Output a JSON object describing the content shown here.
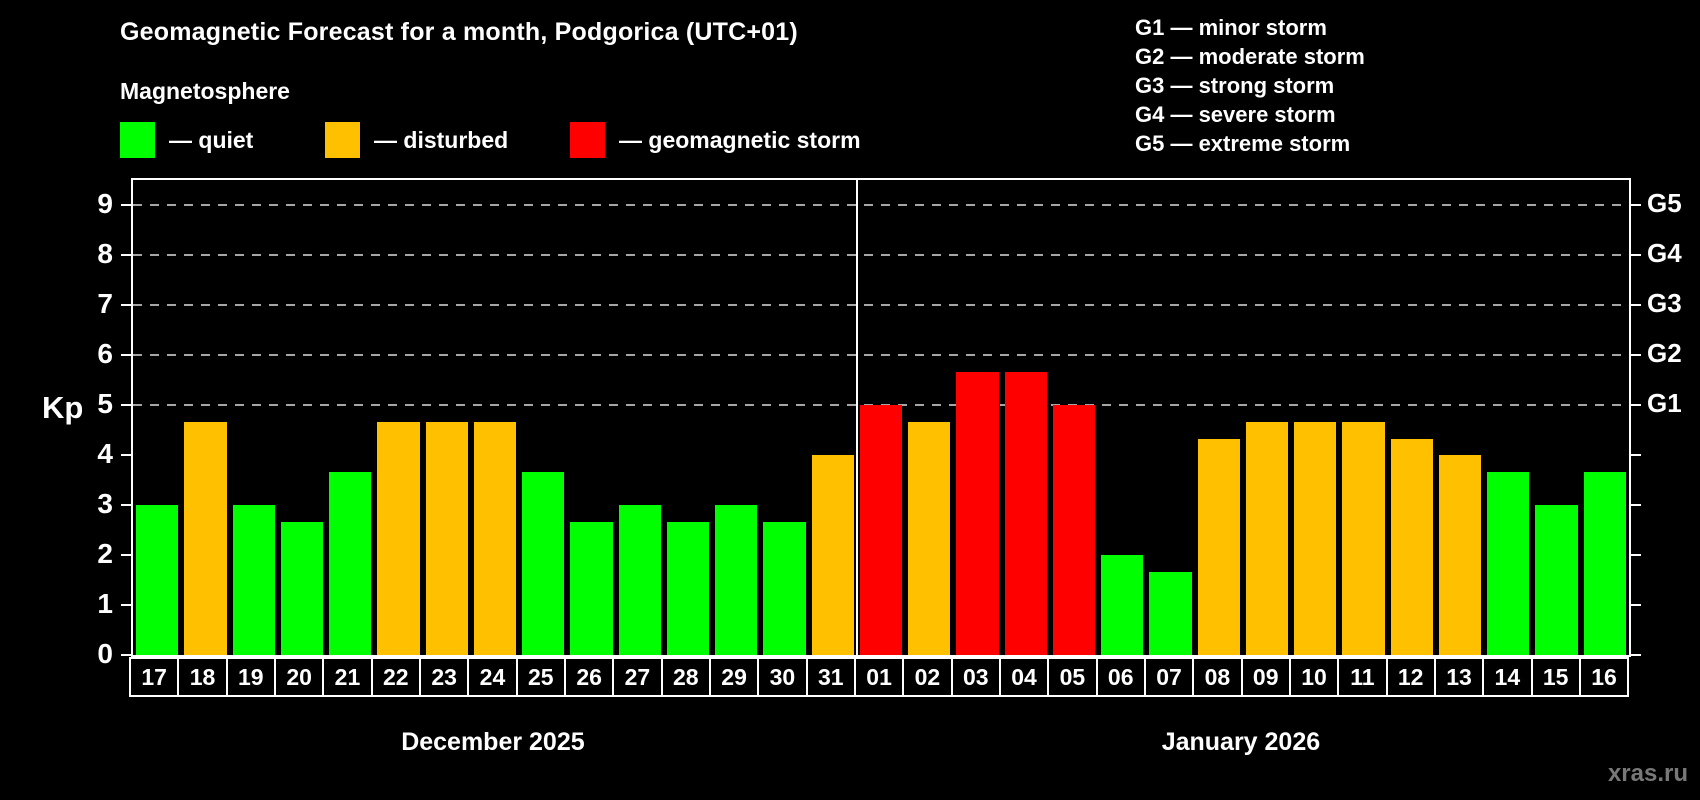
{
  "header": {
    "title": "Geomagnetic Forecast for a month, Podgorica (UTC+01)",
    "subtitle": "Magnetosphere"
  },
  "legend": {
    "items": [
      {
        "label": "— quiet",
        "status": "quiet",
        "color": "#00ff00"
      },
      {
        "label": "— disturbed",
        "status": "disturbed",
        "color": "#ffc000"
      },
      {
        "label": "— geomagnetic storm",
        "status": "storm",
        "color": "#ff0000"
      }
    ]
  },
  "g_legend": {
    "items": [
      "G1 — minor storm",
      "G2 — moderate storm",
      "G3 — strong storm",
      "G4 — severe storm",
      "G5 — extreme storm"
    ]
  },
  "watermark": "xras.ru",
  "chart_data": {
    "type": "bar",
    "title": "Geomagnetic Forecast for a month, Podgorica (UTC+01)",
    "ylabel": "Kp",
    "ylim": [
      0,
      9.5
    ],
    "yticks": [
      0,
      1,
      2,
      3,
      4,
      5,
      6,
      7,
      8,
      9
    ],
    "dashed_gridlines": [
      5,
      6,
      7,
      8,
      9
    ],
    "right_axis_labels": [
      {
        "value": 5,
        "label": "G1"
      },
      {
        "value": 6,
        "label": "G2"
      },
      {
        "value": 7,
        "label": "G3"
      },
      {
        "value": 8,
        "label": "G4"
      },
      {
        "value": 9,
        "label": "G5"
      }
    ],
    "status_colors": {
      "quiet": "#00ff00",
      "disturbed": "#ffc000",
      "storm": "#ff0000"
    },
    "groups": [
      {
        "label": "December 2025",
        "points": [
          {
            "day": "17",
            "kp": 3.0,
            "status": "quiet"
          },
          {
            "day": "18",
            "kp": 4.67,
            "status": "disturbed"
          },
          {
            "day": "19",
            "kp": 3.0,
            "status": "quiet"
          },
          {
            "day": "20",
            "kp": 2.67,
            "status": "quiet"
          },
          {
            "day": "21",
            "kp": 3.67,
            "status": "quiet"
          },
          {
            "day": "22",
            "kp": 4.67,
            "status": "disturbed"
          },
          {
            "day": "23",
            "kp": 4.67,
            "status": "disturbed"
          },
          {
            "day": "24",
            "kp": 4.67,
            "status": "disturbed"
          },
          {
            "day": "25",
            "kp": 3.67,
            "status": "quiet"
          },
          {
            "day": "26",
            "kp": 2.67,
            "status": "quiet"
          },
          {
            "day": "27",
            "kp": 3.0,
            "status": "quiet"
          },
          {
            "day": "28",
            "kp": 2.67,
            "status": "quiet"
          },
          {
            "day": "29",
            "kp": 3.0,
            "status": "quiet"
          },
          {
            "day": "30",
            "kp": 2.67,
            "status": "quiet"
          },
          {
            "day": "31",
            "kp": 4.0,
            "status": "disturbed"
          }
        ]
      },
      {
        "label": "January 2026",
        "points": [
          {
            "day": "01",
            "kp": 5.0,
            "status": "storm"
          },
          {
            "day": "02",
            "kp": 4.67,
            "status": "disturbed"
          },
          {
            "day": "03",
            "kp": 5.67,
            "status": "storm"
          },
          {
            "day": "04",
            "kp": 5.67,
            "status": "storm"
          },
          {
            "day": "05",
            "kp": 5.0,
            "status": "storm"
          },
          {
            "day": "06",
            "kp": 2.0,
            "status": "quiet"
          },
          {
            "day": "07",
            "kp": 1.67,
            "status": "quiet"
          },
          {
            "day": "08",
            "kp": 4.33,
            "status": "disturbed"
          },
          {
            "day": "09",
            "kp": 4.67,
            "status": "disturbed"
          },
          {
            "day": "10",
            "kp": 4.67,
            "status": "disturbed"
          },
          {
            "day": "11",
            "kp": 4.67,
            "status": "disturbed"
          },
          {
            "day": "12",
            "kp": 4.33,
            "status": "disturbed"
          },
          {
            "day": "13",
            "kp": 4.0,
            "status": "disturbed"
          },
          {
            "day": "14",
            "kp": 3.67,
            "status": "quiet"
          },
          {
            "day": "15",
            "kp": 3.0,
            "status": "quiet"
          },
          {
            "day": "16",
            "kp": 3.67,
            "status": "quiet"
          }
        ]
      }
    ]
  }
}
